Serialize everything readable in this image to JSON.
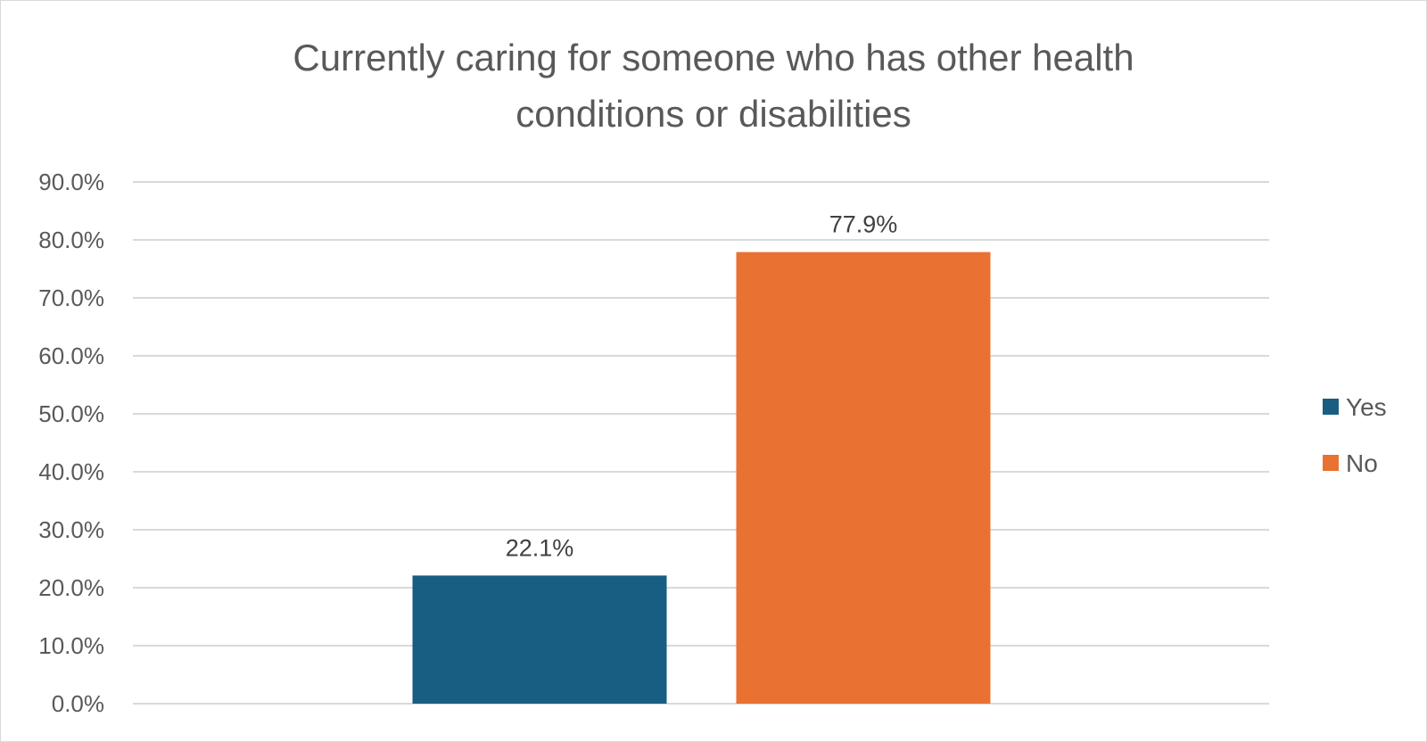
{
  "chart_data": {
    "type": "bar",
    "title_lines": [
      "Currently caring for someone who has other health",
      "conditions or disabilities"
    ],
    "categories": [
      "Yes",
      "No"
    ],
    "values": [
      22.1,
      77.9
    ],
    "value_labels": [
      "22.1%",
      "77.9%"
    ],
    "colors": [
      "#175E82",
      "#E97132"
    ],
    "xlabel": "",
    "ylabel": "",
    "ylim": [
      0,
      90
    ],
    "ytick_step": 10,
    "ytick_labels": [
      "0.0%",
      "10.0%",
      "20.0%",
      "30.0%",
      "40.0%",
      "50.0%",
      "60.0%",
      "70.0%",
      "80.0%",
      "90.0%"
    ],
    "grid": true,
    "legend": {
      "position": "right",
      "entries": [
        {
          "label": "Yes",
          "color": "#175E82"
        },
        {
          "label": "No",
          "color": "#E97132"
        }
      ]
    }
  }
}
